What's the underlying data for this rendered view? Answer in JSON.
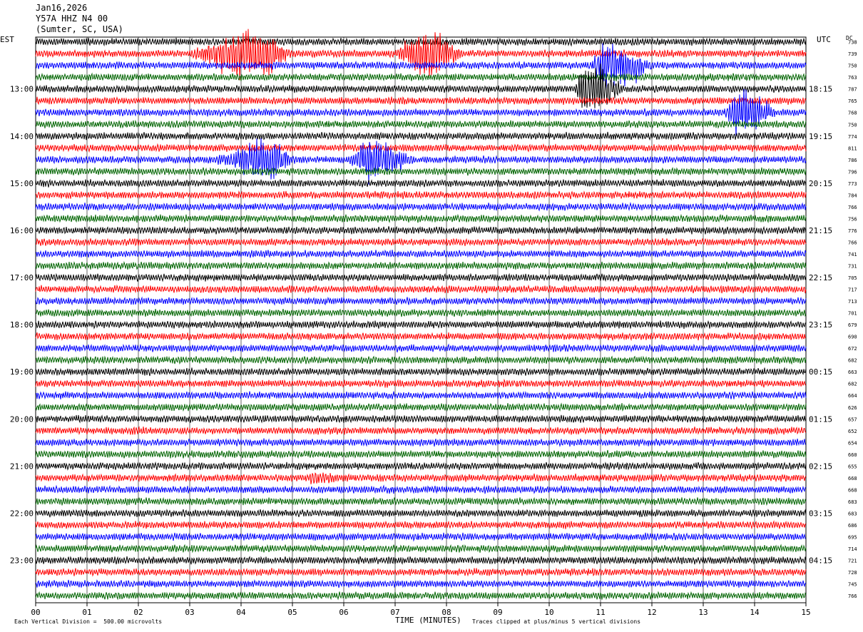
{
  "header": {
    "date": "Jan16,2026",
    "station": "Y57A HHZ N4 00",
    "location": "(Sumter, SC, USA)"
  },
  "corners": {
    "left": "EST",
    "right": "UTC",
    "dc": "DC"
  },
  "footer": {
    "scale_note": "Each Vertical Division =  500.00 microvolts",
    "clip_note": "Traces clipped at plus/minus 5 vertical divisions",
    "xlabel": "TIME (MINUTES)"
  },
  "colors": {
    "cycle": [
      "#000000",
      "#ff0000",
      "#0000ff",
      "#006400"
    ],
    "grid": "#000000"
  },
  "chart_data": {
    "type": "line",
    "xlabel": "TIME (MINUTES)",
    "xlim": [
      0,
      15
    ],
    "x_ticks": [
      "00",
      "01",
      "02",
      "03",
      "04",
      "05",
      "06",
      "07",
      "08",
      "09",
      "10",
      "11",
      "12",
      "13",
      "14",
      "15"
    ],
    "trace_minutes": 15,
    "rows": 48,
    "left_time_labels": [
      {
        "row": 4,
        "label": "13:00"
      },
      {
        "row": 8,
        "label": "14:00"
      },
      {
        "row": 12,
        "label": "15:00"
      },
      {
        "row": 16,
        "label": "16:00"
      },
      {
        "row": 20,
        "label": "17:00"
      },
      {
        "row": 24,
        "label": "18:00"
      },
      {
        "row": 28,
        "label": "19:00"
      },
      {
        "row": 32,
        "label": "20:00"
      },
      {
        "row": 36,
        "label": "21:00"
      },
      {
        "row": 40,
        "label": "22:00"
      },
      {
        "row": 44,
        "label": "23:00"
      }
    ],
    "right_time_labels": [
      {
        "row": 4,
        "label": "18:15"
      },
      {
        "row": 8,
        "label": "19:15"
      },
      {
        "row": 12,
        "label": "20:15"
      },
      {
        "row": 16,
        "label": "21:15"
      },
      {
        "row": 20,
        "label": "22:15"
      },
      {
        "row": 24,
        "label": "23:15"
      },
      {
        "row": 28,
        "label": "00:15"
      },
      {
        "row": 32,
        "label": "01:15"
      },
      {
        "row": 36,
        "label": "02:15"
      },
      {
        "row": 40,
        "label": "03:15"
      },
      {
        "row": 44,
        "label": "04:15"
      }
    ],
    "dc_offsets": [
      738,
      739,
      750,
      763,
      787,
      765,
      768,
      750,
      774,
      811,
      786,
      796,
      773,
      784,
      766,
      756,
      776,
      766,
      741,
      731,
      705,
      717,
      713,
      701,
      679,
      690,
      672,
      682,
      663,
      682,
      664,
      626,
      657,
      652,
      654,
      660,
      655,
      668,
      668,
      683,
      683,
      686,
      695,
      714,
      721,
      728,
      745,
      766
    ],
    "events": [
      {
        "row": 1,
        "start_min": 3.0,
        "end_min": 5.0,
        "peak_min": 4.3,
        "amp": 5
      },
      {
        "row": 1,
        "start_min": 7.0,
        "end_min": 8.3,
        "peak_min": 7.6,
        "amp": 5
      },
      {
        "row": 4,
        "start_min": 10.5,
        "end_min": 11.5,
        "peak_min": 10.7,
        "amp": 5
      },
      {
        "row": 2,
        "start_min": 10.8,
        "end_min": 12.0,
        "peak_min": 11.2,
        "amp": 5
      },
      {
        "row": 6,
        "start_min": 13.4,
        "end_min": 14.4,
        "peak_min": 13.8,
        "amp": 5
      },
      {
        "row": 10,
        "start_min": 3.5,
        "end_min": 5.0,
        "peak_min": 4.6,
        "amp": 4
      },
      {
        "row": 10,
        "start_min": 6.1,
        "end_min": 7.4,
        "peak_min": 6.5,
        "amp": 4
      },
      {
        "row": 37,
        "start_min": 5.3,
        "end_min": 6.0,
        "peak_min": 5.4,
        "amp": 1
      }
    ]
  }
}
